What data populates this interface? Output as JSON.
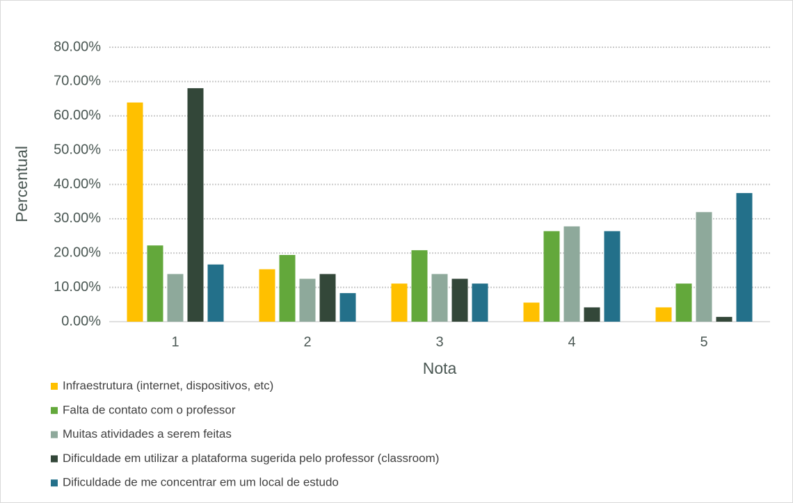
{
  "chart_data": {
    "type": "bar",
    "x_label": "Nota",
    "y_label": "Percentual",
    "categories": [
      "1",
      "2",
      "3",
      "4",
      "5"
    ],
    "series": [
      {
        "name": "Infraestrutura (internet, dispositivos, etc)",
        "color": "#ffc000",
        "values": [
          63.89,
          15.28,
          11.11,
          5.56,
          4.17
        ]
      },
      {
        "name": "Falta de contato com o professor",
        "color": "#63a83b",
        "values": [
          22.22,
          19.44,
          20.83,
          26.39,
          11.11
        ]
      },
      {
        "name": "Muitas atividades a serem feitas",
        "color": "#8ea99b",
        "values": [
          13.89,
          12.5,
          13.89,
          27.78,
          31.94
        ]
      },
      {
        "name": "Dificuldade em utilizar a plataforma sugerida pelo professor (classroom)",
        "color": "#334739",
        "values": [
          68.06,
          13.89,
          12.5,
          4.17,
          1.39
        ]
      },
      {
        "name": "Dificuldade de me concentrar em um local de estudo",
        "color": "#23708a",
        "values": [
          16.67,
          8.33,
          11.11,
          26.39,
          37.5
        ]
      }
    ],
    "ylim": [
      0,
      80
    ],
    "yticks": [
      {
        "value": 0,
        "label": "0.00%"
      },
      {
        "value": 10,
        "label": "10.00%"
      },
      {
        "value": 20,
        "label": "20.00%"
      },
      {
        "value": 30,
        "label": "30.00%"
      },
      {
        "value": 40,
        "label": "40.00%"
      },
      {
        "value": 50,
        "label": "50.00%"
      },
      {
        "value": 60,
        "label": "60.00%"
      },
      {
        "value": 70,
        "label": "70.00%"
      },
      {
        "value": 80,
        "label": "80.00%"
      }
    ],
    "grid": true,
    "legend": "bottom-left"
  }
}
